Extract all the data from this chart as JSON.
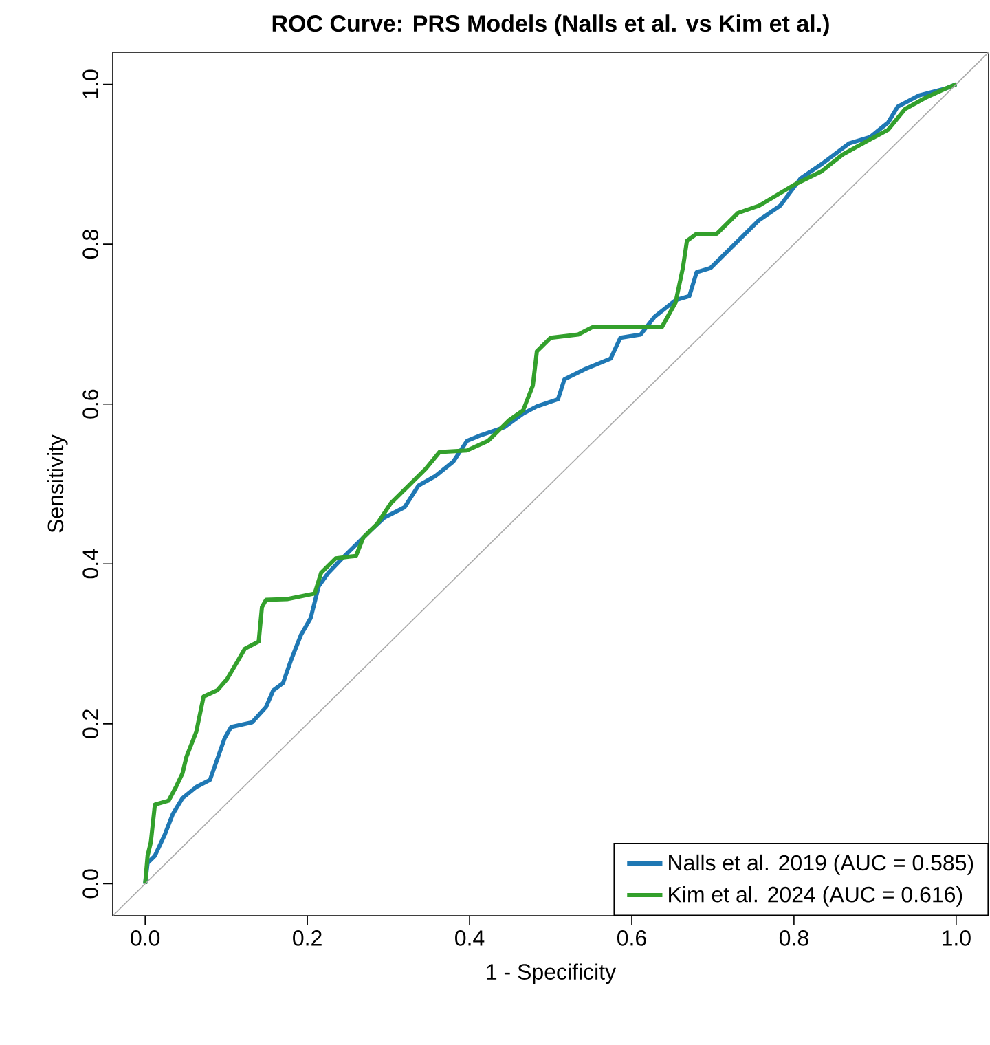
{
  "chart_data": {
    "type": "line",
    "title": "ROC Curve: PRS Models (Nalls et al. vs Kim et al.)",
    "xlabel": "1 - Specificity",
    "ylabel": "Sensitivity",
    "xlim": [
      -0.04,
      1.04
    ],
    "ylim": [
      -0.04,
      1.04
    ],
    "xticks": [
      {
        "value": 0,
        "label": "0.0"
      },
      {
        "value": 0.2,
        "label": "0.2"
      },
      {
        "value": 0.4,
        "label": "0.4"
      },
      {
        "value": 0.6,
        "label": "0.6"
      },
      {
        "value": 0.8,
        "label": "0.8"
      },
      {
        "value": 1,
        "label": "1.0"
      }
    ],
    "yticks": [
      {
        "value": 0,
        "label": "0.0"
      },
      {
        "value": 0.2,
        "label": "0.2"
      },
      {
        "value": 0.4,
        "label": "0.4"
      },
      {
        "value": 0.6,
        "label": "0.6"
      },
      {
        "value": 0.8,
        "label": "0.8"
      },
      {
        "value": 1,
        "label": "1.0"
      }
    ],
    "legend": "bottom right",
    "series": [
      {
        "name": "Nalls et al. 2019 (AUC = 0.585)",
        "color": "#1f78b4",
        "x": [
          0,
          0.003,
          0.012,
          0.024,
          0.034,
          0.046,
          0.063,
          0.08,
          0.089,
          0.098,
          0.106,
          0.132,
          0.149,
          0.158,
          0.17,
          0.18,
          0.192,
          0.204,
          0.214,
          0.226,
          0.243,
          0.26,
          0.277,
          0.295,
          0.32,
          0.337,
          0.358,
          0.38,
          0.397,
          0.414,
          0.443,
          0.466,
          0.483,
          0.509,
          0.517,
          0.543,
          0.574,
          0.586,
          0.611,
          0.628,
          0.654,
          0.671,
          0.68,
          0.697,
          0.714,
          0.731,
          0.757,
          0.783,
          0.808,
          0.834,
          0.868,
          0.894,
          0.916,
          0.928,
          0.954,
          0.988,
          1
        ],
        "values": [
          0,
          0.026,
          0.035,
          0.061,
          0.087,
          0.107,
          0.121,
          0.13,
          0.156,
          0.182,
          0.196,
          0.202,
          0.221,
          0.242,
          0.251,
          0.28,
          0.311,
          0.332,
          0.372,
          0.389,
          0.407,
          0.424,
          0.441,
          0.458,
          0.471,
          0.498,
          0.51,
          0.528,
          0.554,
          0.561,
          0.571,
          0.588,
          0.597,
          0.606,
          0.631,
          0.644,
          0.657,
          0.683,
          0.687,
          0.709,
          0.73,
          0.735,
          0.765,
          0.77,
          0.787,
          0.804,
          0.83,
          0.848,
          0.882,
          0.9,
          0.926,
          0.934,
          0.952,
          0.972,
          0.986,
          0.995,
          1
        ]
      },
      {
        "name": "Kim et al. 2024 (AUC = 0.616)",
        "color": "#33a02c",
        "x": [
          0,
          0.003,
          0.007,
          0.012,
          0.029,
          0.038,
          0.046,
          0.051,
          0.063,
          0.072,
          0.089,
          0.101,
          0.115,
          0.123,
          0.14,
          0.144,
          0.149,
          0.175,
          0.209,
          0.217,
          0.235,
          0.26,
          0.269,
          0.286,
          0.303,
          0.32,
          0.346,
          0.363,
          0.397,
          0.423,
          0.449,
          0.466,
          0.478,
          0.483,
          0.5,
          0.534,
          0.551,
          0.637,
          0.654,
          0.663,
          0.668,
          0.68,
          0.705,
          0.731,
          0.757,
          0.8,
          0.834,
          0.86,
          0.885,
          0.916,
          0.937,
          0.962,
          0.988,
          1
        ],
        "values": [
          0,
          0.035,
          0.052,
          0.099,
          0.104,
          0.121,
          0.138,
          0.159,
          0.19,
          0.234,
          0.242,
          0.256,
          0.28,
          0.294,
          0.303,
          0.346,
          0.355,
          0.356,
          0.363,
          0.389,
          0.407,
          0.41,
          0.433,
          0.45,
          0.476,
          0.493,
          0.519,
          0.54,
          0.542,
          0.554,
          0.58,
          0.592,
          0.623,
          0.666,
          0.683,
          0.687,
          0.696,
          0.696,
          0.727,
          0.77,
          0.804,
          0.813,
          0.813,
          0.839,
          0.848,
          0.874,
          0.891,
          0.912,
          0.926,
          0.943,
          0.969,
          0.983,
          0.995,
          1
        ]
      },
      {
        "color": "#aaaaaa",
        "x": [
          -0.04,
          1.04
        ],
        "values": [
          -0.04,
          1.04
        ]
      }
    ]
  }
}
